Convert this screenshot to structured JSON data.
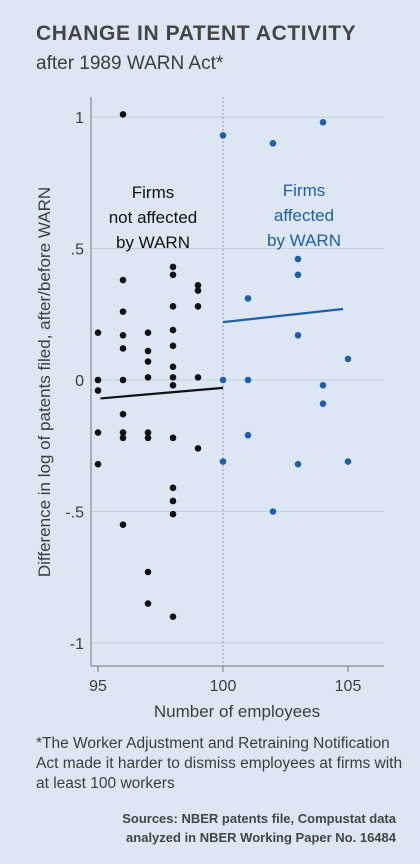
{
  "header": {
    "title": "CHANGE IN PATENT ACTIVITY",
    "subtitle": "after 1989 WARN Act*"
  },
  "footnote": "*The Worker Adjustment and Retraining Notification Act made it harder to dismiss employees at firms with at least 100 workers",
  "sources": {
    "line1": "Sources: NBER patents file, Compustat data",
    "line2": "analyzed in NBER Working Paper No. 16484"
  },
  "colors": {
    "not_affected": "#111111",
    "affected": "#1f5fa8",
    "background": "#dce7f3",
    "grid": "#c3d2e3",
    "cutoff_line": "#999999"
  },
  "chart_data": {
    "type": "scatter",
    "xlabel": "Number of employees",
    "ylabel": "Difference in log of patents filed, after/before WARN",
    "xlim": [
      95,
      105
    ],
    "ylim": [
      -1,
      1
    ],
    "x_ticks": [
      95,
      100,
      105
    ],
    "y_ticks": [
      1,
      0.5,
      0,
      -0.5,
      -1
    ],
    "y_tick_labels": [
      "1",
      ".5",
      "0",
      "-.5",
      "-1"
    ],
    "grid": "horizontal",
    "cutoff_x": 100,
    "annotations": {
      "not_affected": [
        "Firms",
        "not affected",
        "by WARN"
      ],
      "affected": [
        "Firms",
        "affected",
        "by WARN"
      ]
    },
    "series": [
      {
        "name": "Firms not affected by WARN",
        "color": "#111111",
        "points": [
          [
            96,
            1.01
          ],
          [
            95,
            0.18
          ],
          [
            95,
            0.0
          ],
          [
            95,
            -0.04
          ],
          [
            95,
            -0.2
          ],
          [
            95,
            -0.32
          ],
          [
            96,
            0.38
          ],
          [
            96,
            0.26
          ],
          [
            96,
            0.17
          ],
          [
            96,
            0.12
          ],
          [
            96,
            0.0
          ],
          [
            96,
            -0.13
          ],
          [
            96,
            -0.2
          ],
          [
            96,
            -0.22
          ],
          [
            96,
            -0.55
          ],
          [
            97,
            0.18
          ],
          [
            97,
            0.11
          ],
          [
            97,
            0.07
          ],
          [
            97,
            0.01
          ],
          [
            97,
            -0.2
          ],
          [
            97,
            -0.22
          ],
          [
            97,
            -0.73
          ],
          [
            97,
            -0.85
          ],
          [
            98,
            0.43
          ],
          [
            98,
            0.4
          ],
          [
            98,
            0.28
          ],
          [
            98,
            0.19
          ],
          [
            98,
            0.13
          ],
          [
            98,
            0.05
          ],
          [
            98,
            0.01
          ],
          [
            98,
            -0.02
          ],
          [
            98,
            -0.22
          ],
          [
            98,
            -0.41
          ],
          [
            98,
            -0.46
          ],
          [
            98,
            -0.51
          ],
          [
            98,
            -0.9
          ],
          [
            99,
            0.36
          ],
          [
            99,
            0.34
          ],
          [
            99,
            0.28
          ],
          [
            99,
            0.01
          ],
          [
            99,
            -0.26
          ]
        ],
        "fit": [
          [
            95.1,
            -0.07
          ],
          [
            100,
            -0.03
          ]
        ]
      },
      {
        "name": "Firms affected by WARN",
        "color": "#1f5fa8",
        "points": [
          [
            100,
            0.93
          ],
          [
            100,
            0.0
          ],
          [
            100,
            -0.31
          ],
          [
            101,
            0.31
          ],
          [
            101,
            0.0
          ],
          [
            101,
            -0.21
          ],
          [
            102,
            0.9
          ],
          [
            102,
            -0.5
          ],
          [
            103,
            0.46
          ],
          [
            103,
            0.4
          ],
          [
            103,
            0.17
          ],
          [
            103,
            -0.32
          ],
          [
            104,
            0.98
          ],
          [
            104,
            -0.02
          ],
          [
            104,
            -0.09
          ],
          [
            105,
            0.08
          ],
          [
            105,
            -0.31
          ]
        ],
        "fit": [
          [
            100,
            0.22
          ],
          [
            104.8,
            0.27
          ]
        ]
      }
    ]
  }
}
